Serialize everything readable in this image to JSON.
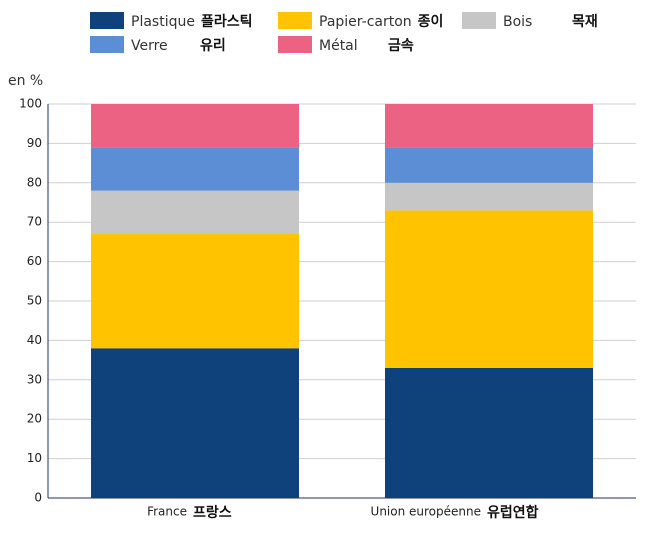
{
  "chart_data": {
    "type": "stacked-bar",
    "y_label": "en %",
    "categories": [
      "France",
      "Union européenne"
    ],
    "category_annotations": [
      "프랑스",
      "유럽연합"
    ],
    "series": [
      {
        "name": "Plastique",
        "annotation": "플라스틱",
        "color": "#0f417b",
        "values": [
          38,
          33
        ]
      },
      {
        "name": "Papier-carton",
        "annotation": "종이",
        "color": "#ffc300",
        "values": [
          29,
          40
        ]
      },
      {
        "name": "Bois",
        "annotation": "목재",
        "color": "#c6c6c6",
        "values": [
          11,
          7
        ]
      },
      {
        "name": "Verre",
        "annotation": "유리",
        "color": "#5b8ed5",
        "values": [
          11,
          9
        ]
      },
      {
        "name": "Métal",
        "annotation": "금속",
        "color": "#ec6282",
        "values": [
          11,
          11
        ]
      }
    ],
    "ylim": [
      0,
      100
    ],
    "yticks": [
      0,
      10,
      20,
      30,
      40,
      50,
      60,
      70,
      80,
      90,
      100
    ],
    "grid": true
  }
}
